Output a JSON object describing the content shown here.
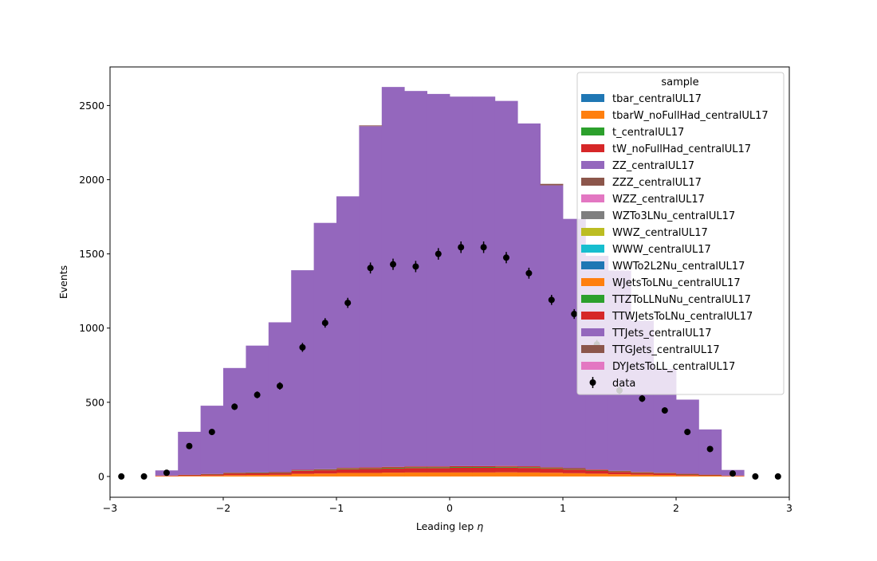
{
  "chart_data": {
    "type": "bar",
    "subtype": "stacked-step-histogram-with-data-points",
    "title": "",
    "xlabel": "Leading lep η",
    "xlabel_main": "Leading lep ",
    "xlabel_symbol": "η",
    "ylabel": "Events",
    "xlim": [
      -3,
      3
    ],
    "ylim": [
      -140,
      2760
    ],
    "x_ticks": [
      -3,
      -2,
      -1,
      0,
      1,
      2,
      3
    ],
    "x_tick_labels": [
      "−3",
      "−2",
      "−1",
      "0",
      "1",
      "2",
      "3"
    ],
    "y_ticks": [
      0,
      500,
      1000,
      1500,
      2000,
      2500
    ],
    "y_tick_labels": [
      "0",
      "500",
      "1000",
      "1500",
      "2000",
      "2500"
    ],
    "bin_edges": [
      -2.6,
      -2.4,
      -2.2,
      -2.0,
      -1.8,
      -1.6,
      -1.4,
      -1.2,
      -1.0,
      -0.8,
      -0.6,
      -0.4,
      -0.2,
      0.0,
      0.2,
      0.4,
      0.6,
      0.8,
      1.0,
      1.2,
      1.4,
      1.6,
      1.8,
      2.0,
      2.2,
      2.4,
      2.6
    ],
    "legend": {
      "title": "sample",
      "location": "upper right"
    },
    "series": [
      {
        "name": "tbar_centralUL17",
        "color": "#1f77b4",
        "values": [
          0,
          0,
          0,
          0,
          0,
          0,
          0,
          0,
          0,
          0,
          0,
          0,
          0,
          0,
          0,
          0,
          0,
          0,
          0,
          0,
          0,
          0,
          0,
          0,
          0,
          0
        ]
      },
      {
        "name": "tbarW_noFullHad_centralUL17",
        "color": "#ff7f0e",
        "values": [
          3,
          4,
          6,
          9,
          10,
          11,
          18,
          20,
          24,
          24,
          26,
          27,
          27,
          27,
          27,
          28,
          27,
          25,
          22,
          19,
          15,
          12,
          10,
          7,
          5,
          3
        ]
      },
      {
        "name": "t_centralUL17",
        "color": "#2ca02c",
        "values": [
          0,
          0,
          0,
          0,
          0,
          0,
          0,
          0,
          0,
          0,
          0,
          0,
          0,
          0,
          0,
          0,
          0,
          0,
          0,
          0,
          0,
          0,
          0,
          0,
          0,
          0
        ]
      },
      {
        "name": "tW_noFullHad_centralUL17",
        "color": "#d62728",
        "values": [
          3,
          5,
          8,
          12,
          12,
          13,
          20,
          22,
          25,
          27,
          28,
          30,
          30,
          32,
          32,
          32,
          31,
          28,
          25,
          21,
          16,
          13,
          11,
          8,
          5,
          3
        ]
      },
      {
        "name": "ZZ_centralUL17",
        "color": "#9467bd",
        "values": [
          0,
          0,
          0,
          0,
          0,
          0,
          0,
          0,
          0,
          0,
          0,
          0,
          0,
          0,
          0,
          0,
          0,
          0,
          0,
          0,
          0,
          0,
          0,
          0,
          0,
          0
        ]
      },
      {
        "name": "ZZZ_centralUL17",
        "color": "#8c564b",
        "values": [
          0,
          0,
          0,
          0,
          0,
          0,
          0,
          0,
          0,
          0,
          0,
          0,
          0,
          0,
          0,
          0,
          0,
          0,
          0,
          0,
          0,
          0,
          0,
          0,
          0,
          0
        ]
      },
      {
        "name": "WZZ_centralUL17",
        "color": "#e377c2",
        "values": [
          0,
          0,
          0,
          0,
          0,
          0,
          0,
          0,
          0,
          0,
          0,
          0,
          0,
          0,
          0,
          0,
          0,
          0,
          0,
          0,
          0,
          0,
          0,
          0,
          0,
          0
        ]
      },
      {
        "name": "WZTo3LNu_centralUL17",
        "color": "#7f7f7f",
        "values": [
          0,
          0,
          0,
          0,
          0,
          0,
          0,
          0,
          0,
          0,
          0,
          0,
          0,
          0,
          0,
          0,
          0,
          0,
          0,
          0,
          0,
          0,
          0,
          0,
          0,
          0
        ]
      },
      {
        "name": "WWZ_centralUL17",
        "color": "#bcbd22",
        "values": [
          0,
          0,
          0,
          0,
          0,
          0,
          0,
          0,
          0,
          0,
          0,
          0,
          0,
          0,
          0,
          0,
          0,
          0,
          0,
          0,
          0,
          0,
          0,
          0,
          0,
          0
        ]
      },
      {
        "name": "WWW_centralUL17",
        "color": "#17becf",
        "values": [
          0,
          0,
          0,
          0,
          0,
          0,
          0,
          0,
          0,
          0,
          0,
          0,
          0,
          0,
          0,
          0,
          0,
          0,
          0,
          0,
          0,
          0,
          0,
          0,
          0,
          0
        ]
      },
      {
        "name": "WWTo2L2Nu_centralUL17",
        "color": "#1f77b4",
        "values": [
          0,
          0,
          0,
          0,
          0,
          0,
          0,
          0,
          0,
          0,
          0,
          0,
          0,
          0,
          0,
          0,
          0,
          0,
          0,
          0,
          0,
          0,
          0,
          0,
          0,
          0
        ]
      },
      {
        "name": "WJetsToLNu_centralUL17",
        "color": "#ff7f0e",
        "values": [
          0,
          0,
          0,
          0,
          0,
          0,
          0,
          0,
          0,
          0,
          0,
          0,
          0,
          0,
          0,
          0,
          0,
          0,
          0,
          0,
          0,
          0,
          0,
          0,
          0,
          0
        ]
      },
      {
        "name": "TTZToLLNuNu_centralUL17",
        "color": "#2ca02c",
        "values": [
          0,
          1,
          1,
          2,
          2,
          2,
          3,
          3,
          4,
          4,
          5,
          5,
          5,
          5,
          5,
          5,
          5,
          4,
          4,
          3,
          3,
          2,
          2,
          1,
          1,
          0
        ]
      },
      {
        "name": "TTWJetsToLNu_centralUL17",
        "color": "#d62728",
        "values": [
          0,
          1,
          2,
          3,
          3,
          3,
          4,
          4,
          5,
          6,
          6,
          6,
          6,
          6,
          6,
          6,
          6,
          5,
          5,
          4,
          4,
          3,
          2,
          2,
          1,
          0
        ]
      },
      {
        "name": "TTJets_centralUL17",
        "color": "#9467bd",
        "values": [
          35,
          290,
          460,
          705,
          855,
          1010,
          1345,
          1660,
          1830,
          2300,
          2560,
          2530,
          2510,
          2490,
          2490,
          2460,
          2310,
          1900,
          1680,
          1440,
          1350,
          1020,
          700,
          500,
          305,
          38
        ]
      },
      {
        "name": "TTGJets_centralUL17",
        "color": "#8c564b",
        "values": [
          0,
          0,
          0,
          0,
          0,
          0,
          0,
          0,
          0,
          5,
          0,
          0,
          0,
          0,
          0,
          0,
          0,
          10,
          0,
          0,
          0,
          0,
          0,
          0,
          0,
          0
        ]
      },
      {
        "name": "DYJetsToLL_centralUL17",
        "color": "#e377c2",
        "values": [
          0,
          0,
          0,
          0,
          0,
          0,
          0,
          0,
          0,
          0,
          0,
          0,
          0,
          0,
          0,
          0,
          0,
          0,
          0,
          0,
          0,
          0,
          0,
          0,
          0,
          0
        ]
      }
    ],
    "data_points": {
      "name": "data",
      "color": "#000000",
      "x": [
        -2.9,
        -2.7,
        -2.5,
        -2.3,
        -2.1,
        -1.9,
        -1.7,
        -1.5,
        -1.3,
        -1.1,
        -0.9,
        -0.7,
        -0.5,
        -0.3,
        -0.1,
        0.1,
        0.3,
        0.5,
        0.7,
        0.9,
        1.1,
        1.3,
        1.5,
        1.7,
        1.9,
        2.1,
        2.3,
        2.5,
        2.7,
        2.9
      ],
      "y": [
        0,
        0,
        25,
        205,
        300,
        470,
        550,
        610,
        870,
        1035,
        1170,
        1405,
        1430,
        1415,
        1500,
        1545,
        1545,
        1475,
        1370,
        1190,
        1095,
        890,
        580,
        525,
        445,
        300,
        185,
        20,
        0,
        0
      ],
      "yerr": [
        0,
        0,
        5,
        14,
        17,
        22,
        23,
        25,
        30,
        32,
        34,
        37,
        38,
        38,
        39,
        39,
        39,
        38,
        37,
        34,
        33,
        30,
        24,
        23,
        21,
        17,
        14,
        4,
        0,
        0
      ]
    }
  }
}
